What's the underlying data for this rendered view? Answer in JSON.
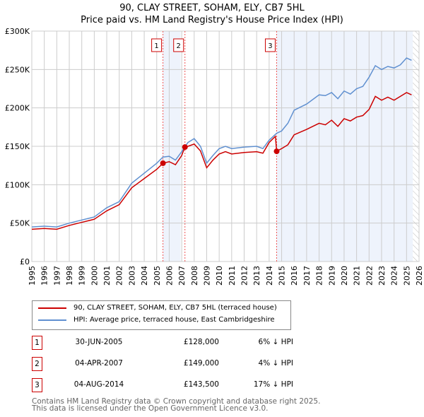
{
  "chart_data": {
    "type": "line",
    "title": "90, CLAY STREET, SOHAM, ELY, CB7 5HL",
    "subtitle": "Price paid vs. HM Land Registry's House Price Index (HPI)",
    "xlim": [
      1995,
      2026
    ],
    "ylim": [
      0,
      300000
    ],
    "yticks": [
      {
        "v": 0,
        "label": "£0"
      },
      {
        "v": 50000,
        "label": "£50K"
      },
      {
        "v": 100000,
        "label": "£100K"
      },
      {
        "v": 150000,
        "label": "£150K"
      },
      {
        "v": 200000,
        "label": "£200K"
      },
      {
        "v": 250000,
        "label": "£250K"
      },
      {
        "v": 300000,
        "label": "£300K"
      }
    ],
    "xticks": [
      "1995",
      "1996",
      "1997",
      "1998",
      "1999",
      "2000",
      "2001",
      "2002",
      "2003",
      "2004",
      "2005",
      "2006",
      "2007",
      "2008",
      "2009",
      "2010",
      "2011",
      "2012",
      "2013",
      "2014",
      "2015",
      "2016",
      "2017",
      "2018",
      "2019",
      "2020",
      "2021",
      "2022",
      "2023",
      "2024",
      "2025",
      "2026"
    ],
    "grid": true,
    "colors": {
      "property": "#cc0000",
      "hpi": "#6090d0",
      "shade": "#eef3fc"
    },
    "shaded": [
      [
        2005.5,
        2006.9
      ],
      [
        2014.6,
        2025.5
      ]
    ],
    "hatched_from": 2025.5,
    "series": [
      {
        "name": "90, CLAY STREET, SOHAM, ELY, CB7 5HL (terraced house)",
        "color": "#cc0000",
        "x": [
          1995,
          1996,
          1997,
          1998,
          1999,
          2000,
          2001,
          2002,
          2003,
          2004,
          2005,
          2005.5,
          2006,
          2006.5,
          2007,
          2007.25,
          2007.5,
          2008,
          2008.5,
          2009,
          2009.5,
          2010,
          2010.5,
          2011,
          2012,
          2013,
          2013.5,
          2014,
          2014.5,
          2014.6,
          2015,
          2015.5,
          2016,
          2017,
          2018,
          2018.5,
          2019,
          2019.5,
          2020,
          2020.5,
          2021,
          2021.5,
          2022,
          2022.5,
          2023,
          2023.5,
          2024,
          2024.5,
          2025,
          2025.4
        ],
        "y": [
          42000,
          43000,
          42000,
          47000,
          51000,
          55000,
          66000,
          74000,
          96000,
          108000,
          120000,
          128000,
          130000,
          126000,
          138000,
          149000,
          150000,
          153000,
          144000,
          122000,
          132000,
          140000,
          143000,
          140000,
          142000,
          143000,
          141000,
          155000,
          163000,
          143500,
          147000,
          152000,
          165000,
          172000,
          180000,
          178000,
          184000,
          176000,
          186000,
          183000,
          188000,
          190000,
          198000,
          215000,
          210000,
          214000,
          210000,
          215000,
          220000,
          217000
        ]
      },
      {
        "name": "HPI: Average price, terraced house, East Cambridgeshire",
        "color": "#6090d0",
        "x": [
          1995,
          1996,
          1997,
          1998,
          1999,
          2000,
          2001,
          2002,
          2003,
          2004,
          2005,
          2005.5,
          2006,
          2006.5,
          2007,
          2007.5,
          2008,
          2008.5,
          2009,
          2009.5,
          2010,
          2010.5,
          2011,
          2012,
          2013,
          2013.5,
          2014,
          2014.6,
          2015,
          2015.5,
          2016,
          2017,
          2018,
          2018.5,
          2019,
          2019.5,
          2020,
          2020.5,
          2021,
          2021.5,
          2022,
          2022.5,
          2023,
          2023.5,
          2024,
          2024.5,
          2025,
          2025.4
        ],
        "y": [
          45000,
          46000,
          45000,
          50000,
          54000,
          58000,
          70000,
          78000,
          102000,
          115000,
          128000,
          136000,
          137000,
          132000,
          143000,
          155000,
          160000,
          150000,
          128000,
          138000,
          147000,
          150000,
          147000,
          149000,
          150000,
          147000,
          158000,
          167000,
          170000,
          180000,
          197000,
          205000,
          217000,
          216000,
          220000,
          212000,
          222000,
          218000,
          225000,
          228000,
          240000,
          255000,
          250000,
          254000,
          252000,
          256000,
          265000,
          262000
        ]
      }
    ],
    "sales": [
      {
        "num": "1",
        "x": 2005.5,
        "y": 128000,
        "date": "30-JUN-2005",
        "price": "£128,000",
        "hpi": "6% ↓ HPI"
      },
      {
        "num": "2",
        "x": 2007.26,
        "y": 149000,
        "date": "04-APR-2007",
        "price": "£149,000",
        "hpi": "4% ↓ HPI"
      },
      {
        "num": "3",
        "x": 2014.6,
        "y": 143500,
        "date": "04-AUG-2014",
        "price": "£143,500",
        "hpi": "17% ↓ HPI"
      }
    ]
  },
  "footer": {
    "line1": "Contains HM Land Registry data © Crown copyright and database right 2025.",
    "line2": "This data is licensed under the Open Government Licence v3.0."
  }
}
